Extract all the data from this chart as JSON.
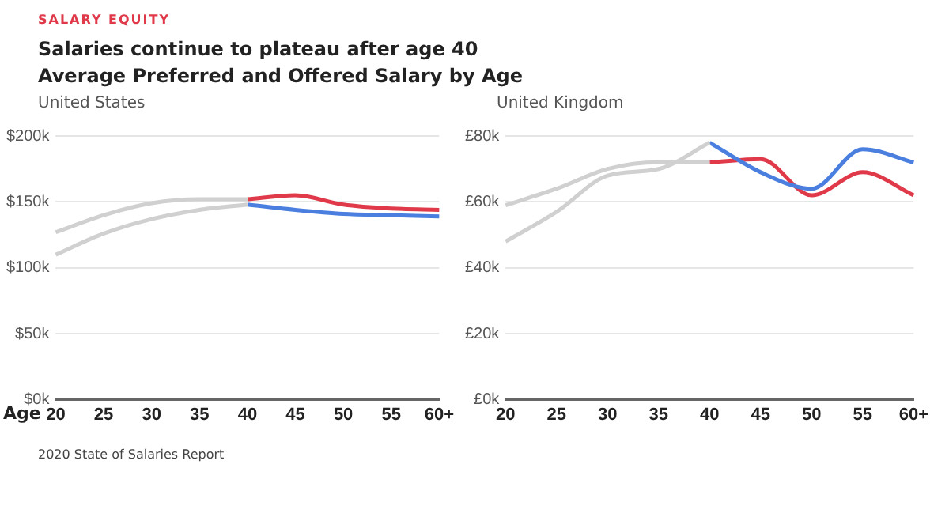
{
  "chart_data": [
    {
      "type": "line",
      "title": "United States",
      "xlabel": "Age",
      "annotations": [
        "SALARY EQUITY",
        "Salaries continue to plateau after age 40",
        "Average Preferred and Offered Salary by Age",
        "2020 State of Salaries Report"
      ],
      "categories": [
        "20",
        "25",
        "30",
        "35",
        "40",
        "45",
        "50",
        "55",
        "60+"
      ],
      "series": [
        {
          "color": "#d0d0d0",
          "values": [
            127,
            140,
            149,
            152,
            152,
            null,
            null,
            null,
            null
          ]
        },
        {
          "color": "#d0d0d0",
          "values": [
            110,
            126,
            137,
            144,
            148,
            null,
            null,
            null,
            null
          ]
        },
        {
          "color": "#4a7fe0",
          "values": [
            null,
            null,
            null,
            null,
            148,
            144,
            141,
            140,
            139
          ]
        },
        {
          "color": "#e03a4a",
          "values": [
            null,
            null,
            null,
            null,
            152,
            155,
            148,
            145,
            144
          ]
        }
      ],
      "ylim": [
        0,
        200
      ],
      "yticks": [
        {
          "value": 0,
          "label": "$0k"
        },
        {
          "value": 50,
          "label": "$50k"
        },
        {
          "value": 100,
          "label": "$100k"
        },
        {
          "value": 150,
          "label": "$150k"
        },
        {
          "value": 200,
          "label": "$200k"
        }
      ],
      "grid": "y",
      "legend": false
    },
    {
      "type": "line",
      "title": "United Kingdom",
      "categories": [
        "20",
        "25",
        "30",
        "35",
        "40",
        "45",
        "50",
        "55",
        "60+"
      ],
      "series": [
        {
          "color": "#d0d0d0",
          "values": [
            59,
            64,
            70,
            72,
            72,
            null,
            null,
            null,
            null
          ]
        },
        {
          "color": "#d0d0d0",
          "values": [
            48,
            57,
            68,
            70,
            78,
            null,
            null,
            null,
            null
          ]
        },
        {
          "color": "#4a7fe0",
          "values": [
            null,
            null,
            null,
            null,
            78,
            69,
            64,
            76,
            72
          ]
        },
        {
          "color": "#e03a4a",
          "values": [
            null,
            null,
            null,
            null,
            72,
            73,
            62,
            69,
            62
          ]
        }
      ],
      "ylim": [
        0,
        80
      ],
      "yticks": [
        {
          "value": 0,
          "label": "£0k"
        },
        {
          "value": 20,
          "label": "£20k"
        },
        {
          "value": 40,
          "label": "£40k"
        },
        {
          "value": 60,
          "label": "£60k"
        },
        {
          "value": 80,
          "label": "£80k"
        }
      ],
      "grid": "y",
      "legend": false
    }
  ]
}
